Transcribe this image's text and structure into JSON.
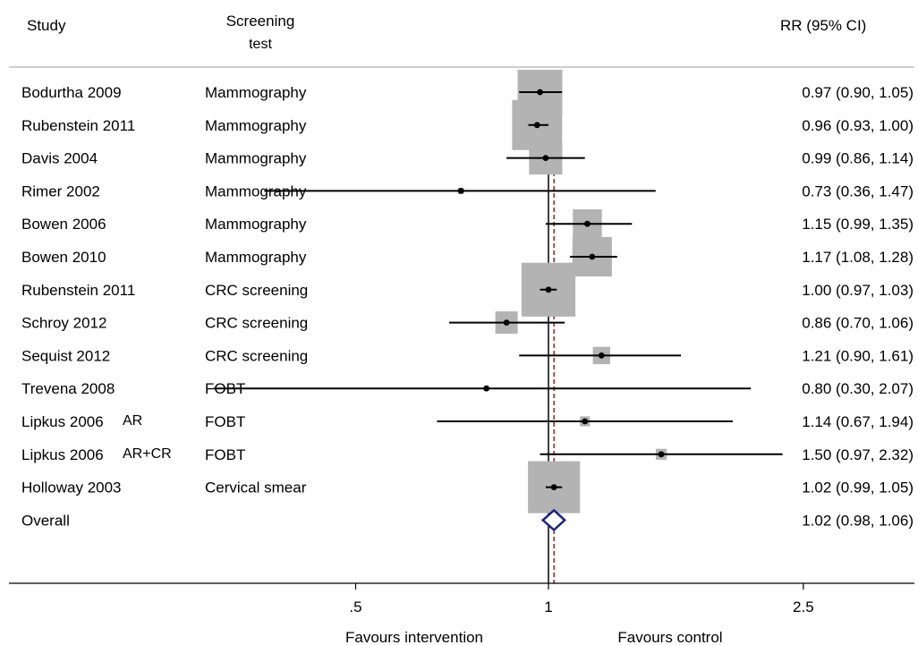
{
  "chart_data": {
    "type": "forest",
    "headers": {
      "study": "Study",
      "test_line1": "Screening",
      "test_line2": "test",
      "ci": "RR (95% CI)"
    },
    "x_axis": {
      "scale": "log",
      "ticks": [
        {
          "value": 0.5,
          "label": ".5"
        },
        {
          "value": 1,
          "label": "1"
        },
        {
          "value": 2.5,
          "label": "2.5"
        }
      ],
      "label_left": "Favours intervention",
      "label_right": "Favours control",
      "null_line": 1,
      "overall_line": 1.02
    },
    "studies": [
      {
        "study": "Bodurtha 2009",
        "sub": "",
        "test": "Mammography",
        "rr": 0.97,
        "lo": 0.9,
        "hi": 1.05,
        "ci_text": "0.97 (0.90, 1.05)",
        "weight": 1.0
      },
      {
        "study": "Rubenstein 2011",
        "sub": "",
        "test": "Mammography",
        "rr": 0.96,
        "lo": 0.93,
        "hi": 1.0,
        "ci_text": "0.96 (0.93, 1.00)",
        "weight": 1.25
      },
      {
        "study": "Davis 2004",
        "sub": "",
        "test": "Mammography",
        "rr": 0.99,
        "lo": 0.86,
        "hi": 1.14,
        "ci_text": "0.99 (0.86, 1.14)",
        "weight": 0.55
      },
      {
        "study": "Rimer 2002",
        "sub": "",
        "test": "Mammography",
        "rr": 0.73,
        "lo": 0.36,
        "hi": 1.47,
        "ci_text": "0.73 (0.36, 1.47)",
        "weight": 0.02
      },
      {
        "study": "Bowen 2006",
        "sub": "",
        "test": "Mammography",
        "rr": 1.15,
        "lo": 0.99,
        "hi": 1.35,
        "ci_text": "1.15 (0.99, 1.35)",
        "weight": 0.42
      },
      {
        "study": "Bowen 2010",
        "sub": "",
        "test": "Mammography",
        "rr": 1.17,
        "lo": 1.08,
        "hi": 1.28,
        "ci_text": "1.17 (1.08, 1.28)",
        "weight": 0.78
      },
      {
        "study": "Rubenstein 2011",
        "sub": "",
        "test": "CRC screening",
        "rr": 1.0,
        "lo": 0.97,
        "hi": 1.03,
        "ci_text": "1.00 (0.97, 1.03)",
        "weight": 1.45
      },
      {
        "study": "Schroy 2012",
        "sub": "",
        "test": "CRC screening",
        "rr": 0.86,
        "lo": 0.7,
        "hi": 1.06,
        "ci_text": "0.86 (0.70, 1.06)",
        "weight": 0.25
      },
      {
        "study": "Sequist 2012",
        "sub": "",
        "test": "CRC screening",
        "rr": 1.21,
        "lo": 0.9,
        "hi": 1.61,
        "ci_text": "1.21 (0.90, 1.61)",
        "weight": 0.15
      },
      {
        "study": "Trevena 2008",
        "sub": "",
        "test": "FOBT",
        "rr": 0.8,
        "lo": 0.3,
        "hi": 2.07,
        "ci_text": "0.80 (0.30, 2.07)",
        "weight": 0.0
      },
      {
        "study": "Lipkus 2006",
        "sub": "AR",
        "test": "FOBT",
        "rr": 1.14,
        "lo": 0.67,
        "hi": 1.94,
        "ci_text": "1.14 (0.67, 1.94)",
        "weight": 0.05
      },
      {
        "study": "Lipkus 2006",
        "sub": "AR+CR",
        "test": "FOBT",
        "rr": 1.5,
        "lo": 0.97,
        "hi": 2.32,
        "ci_text": "1.50 (0.97, 2.32)",
        "weight": 0.06
      },
      {
        "study": "Holloway 2003",
        "sub": "",
        "test": "Cervical smear",
        "rr": 1.02,
        "lo": 0.99,
        "hi": 1.05,
        "ci_text": "1.02 (0.99, 1.05)",
        "weight": 1.35
      }
    ],
    "overall": {
      "study": "Overall",
      "rr": 1.02,
      "lo": 0.98,
      "hi": 1.06,
      "ci_text": "1.02 (0.98, 1.06)"
    },
    "colors": {
      "box": "#b3b3b3",
      "diamond": "#1a237e",
      "overall_line": "#8b0000",
      "ink": "#000000"
    }
  }
}
